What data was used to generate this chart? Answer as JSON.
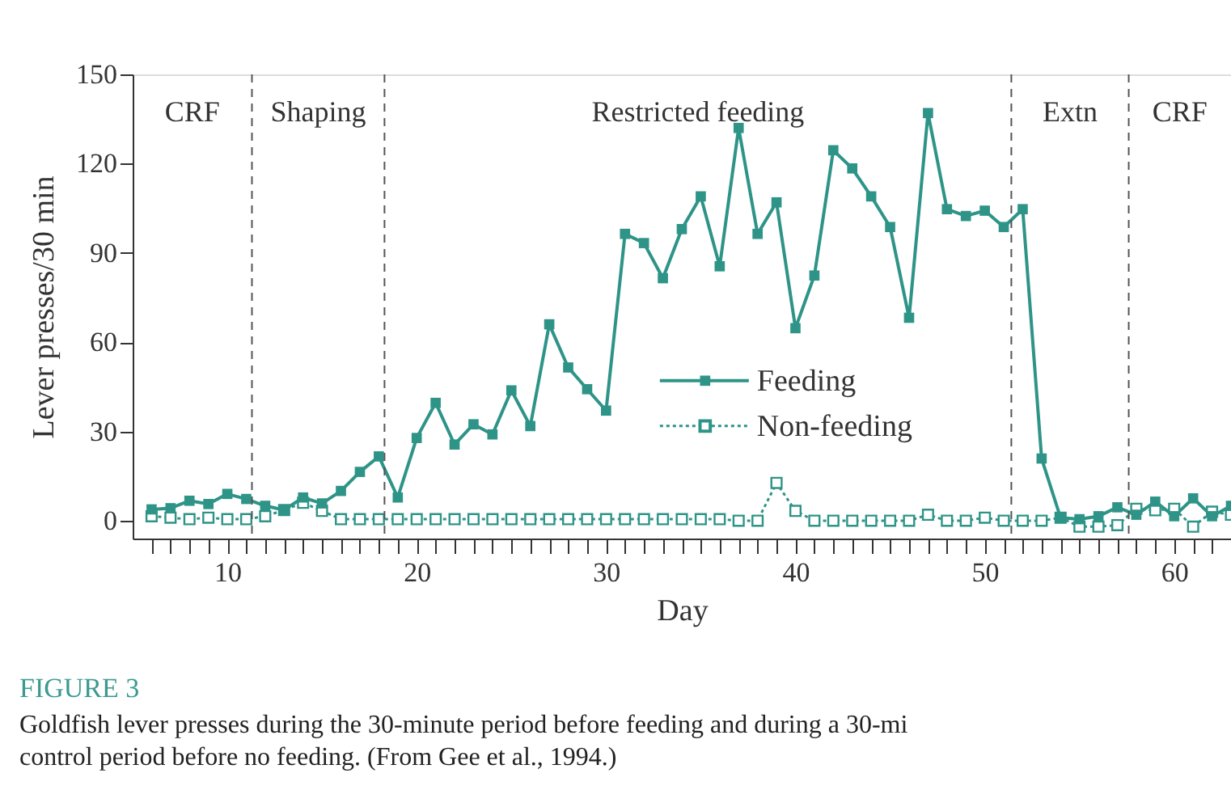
{
  "chart_data": {
    "type": "line",
    "xlabel": "Day",
    "ylabel": "Lever presses/30 min",
    "x": [
      6,
      7,
      8,
      9,
      10,
      11,
      12,
      13,
      14,
      15,
      16,
      17,
      18,
      19,
      20,
      21,
      22,
      23,
      24,
      25,
      26,
      27,
      28,
      29,
      30,
      31,
      32,
      33,
      34,
      35,
      36,
      37,
      38,
      39,
      40,
      41,
      42,
      43,
      44,
      45,
      46,
      47,
      48,
      49,
      50,
      51,
      52,
      53,
      54,
      55,
      56,
      57,
      58,
      59,
      60,
      61,
      62,
      63
    ],
    "series": [
      {
        "name": "Feeding",
        "color": "#2e9488",
        "line_style": "solid",
        "marker": "square",
        "values": [
          3.8,
          4.2,
          6.7,
          5.6,
          9,
          7.3,
          5,
          3.6,
          7.8,
          5.8,
          10,
          16.4,
          21.6,
          7.8,
          27.8,
          39.6,
          25.6,
          32.4,
          29,
          43.8,
          31.8,
          66,
          51.5,
          44.2,
          37,
          96.4,
          93.3,
          81.5,
          98,
          109,
          85.5,
          132,
          96.4,
          107,
          64.7,
          82.4,
          124.5,
          118.4,
          109,
          98.7,
          68.2,
          137,
          104.7,
          102.4,
          104.2,
          98.7,
          104.7,
          20.9,
          1,
          0.5,
          1.5,
          4.5,
          2,
          6.4,
          1.5,
          7.5,
          1.5,
          5
        ]
      },
      {
        "name": "Non-feeding",
        "color": "#2e9488",
        "line_style": "dotted",
        "marker": "square",
        "values": [
          1.5,
          1,
          0.5,
          1,
          0.5,
          0.5,
          1.5,
          3.6,
          6,
          3.3,
          0.5,
          0.5,
          0.5,
          0.5,
          0.5,
          0.5,
          0.5,
          0.5,
          0.5,
          0.5,
          0.5,
          0.5,
          0.5,
          0.5,
          0.5,
          0.5,
          0.5,
          0.5,
          0.5,
          0.5,
          0.5,
          0,
          0,
          12.7,
          3.3,
          0,
          0,
          0,
          0,
          0,
          0,
          2,
          0,
          0,
          1,
          0,
          0,
          0,
          1,
          -2,
          -2,
          -1.5,
          4,
          3.5,
          4,
          -2,
          3,
          2
        ]
      }
    ],
    "xlim": [
      5,
      63
    ],
    "ylim": [
      -6,
      150
    ],
    "xticks": [
      {
        "value": 6,
        "label": null
      },
      {
        "value": 7,
        "label": null
      },
      {
        "value": 8,
        "label": null
      },
      {
        "value": 9,
        "label": null
      },
      10,
      {
        "value": 11,
        "label": null
      },
      {
        "value": 12,
        "label": null
      },
      {
        "value": 13,
        "label": null
      },
      {
        "value": 14,
        "label": null
      },
      {
        "value": 15,
        "label": null
      },
      {
        "value": 16,
        "label": null
      },
      {
        "value": 17,
        "label": null
      },
      {
        "value": 18,
        "label": null
      },
      {
        "value": 19,
        "label": null
      },
      20,
      {
        "value": 21,
        "label": null
      },
      {
        "value": 22,
        "label": null
      },
      {
        "value": 23,
        "label": null
      },
      {
        "value": 24,
        "label": null
      },
      {
        "value": 25,
        "label": null
      },
      {
        "value": 26,
        "label": null
      },
      {
        "value": 27,
        "label": null
      },
      {
        "value": 28,
        "label": null
      },
      {
        "value": 29,
        "label": null
      },
      30,
      {
        "value": 31,
        "label": null
      },
      {
        "value": 32,
        "label": null
      },
      {
        "value": 33,
        "label": null
      },
      {
        "value": 34,
        "label": null
      },
      {
        "value": 35,
        "label": null
      },
      {
        "value": 36,
        "label": null
      },
      {
        "value": 37,
        "label": null
      },
      {
        "value": 38,
        "label": null
      },
      {
        "value": 39,
        "label": null
      },
      40,
      {
        "value": 41,
        "label": null
      },
      {
        "value": 42,
        "label": null
      },
      {
        "value": 43,
        "label": null
      },
      {
        "value": 44,
        "label": null
      },
      {
        "value": 45,
        "label": null
      },
      {
        "value": 46,
        "label": null
      },
      {
        "value": 47,
        "label": null
      },
      {
        "value": 48,
        "label": null
      },
      {
        "value": 49,
        "label": null
      },
      50,
      {
        "value": 51,
        "label": null
      },
      {
        "value": 52,
        "label": null
      },
      {
        "value": 53,
        "label": null
      },
      {
        "value": 54,
        "label": null
      },
      {
        "value": 55,
        "label": null
      },
      {
        "value": 56,
        "label": null
      },
      {
        "value": 57,
        "label": null
      },
      {
        "value": 58,
        "label": null
      },
      {
        "value": 59,
        "label": null
      },
      60,
      {
        "value": 61,
        "label": null
      },
      {
        "value": 62,
        "label": null
      },
      {
        "value": 63,
        "label": null
      }
    ],
    "yticks": [
      0,
      30,
      60,
      90,
      120,
      150
    ],
    "ref_lines": [
      {
        "axis": "x",
        "value": 11.3,
        "line_style": "dashed",
        "color": "#555555"
      },
      {
        "axis": "x",
        "value": 18.3,
        "line_style": "dashed",
        "color": "#555555"
      },
      {
        "axis": "x",
        "value": 51.4,
        "line_style": "dashed",
        "color": "#555555"
      },
      {
        "axis": "x",
        "value": 57.6,
        "line_style": "dashed",
        "color": "#555555"
      }
    ],
    "annotations": [
      "CRF",
      "Shaping",
      "Restricted feeding",
      "Extn",
      "CRF",
      "FIGURE 3",
      "Goldfish lever presses during the 30-minute period before feeding and during a 30-mi\ncontrol period before no feeding. (From Gee et al., 1994.)"
    ],
    "legend": "center",
    "grid": false
  }
}
